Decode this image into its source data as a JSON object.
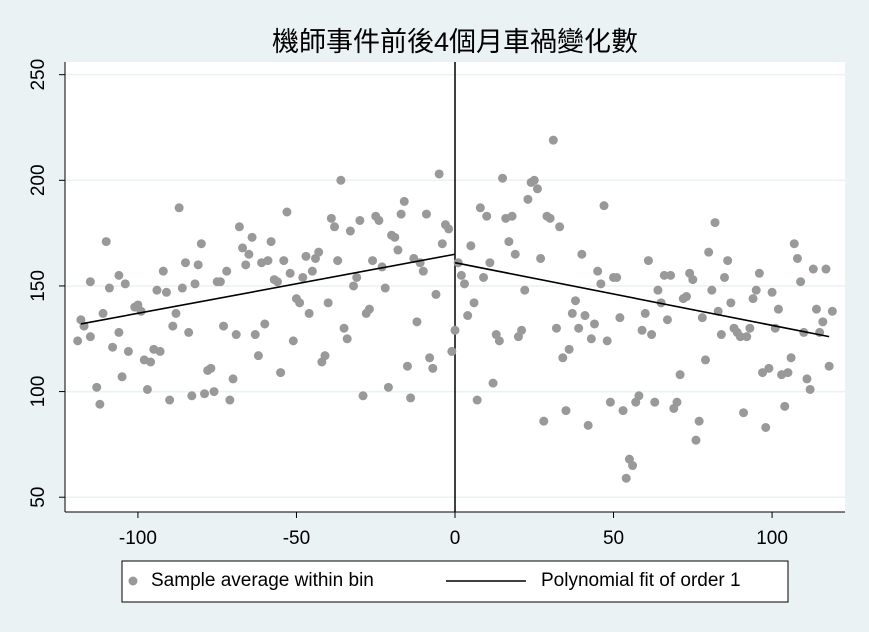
{
  "chart_data": {
    "type": "scatter",
    "title": "機師事件前後4個月車禍變化數",
    "xlim": [
      -123,
      123
    ],
    "xticks": [
      -100,
      -50,
      0,
      50,
      100
    ],
    "ylim": [
      43,
      256
    ],
    "yticks": [
      50,
      100,
      150,
      200,
      250
    ],
    "grid": true,
    "xline": 0,
    "legend": "bottom",
    "series": [
      {
        "name": "Sample average within bin",
        "type": "scatter",
        "color": "#999999",
        "x": [
          -119,
          -118,
          -117,
          -115,
          -115,
          -113,
          -112,
          -111,
          -110,
          -109,
          -108,
          -106,
          -106,
          -105,
          -104,
          -103,
          -101,
          -100,
          -99,
          -98,
          -97,
          -96,
          -95,
          -94,
          -93,
          -92,
          -91,
          -90,
          -89,
          -88,
          -87,
          -86,
          -85,
          -84,
          -83,
          -82,
          -81,
          -80,
          -79,
          -78,
          -77,
          -76,
          -75,
          -74,
          -73,
          -72,
          -71,
          -70,
          -69,
          -68,
          -67,
          -66,
          -65,
          -64,
          -63,
          -62,
          -61,
          -60,
          -59,
          -58,
          -57,
          -56,
          -55,
          -54,
          -53,
          -52,
          -51,
          -50,
          -49,
          -48,
          -47,
          -46,
          -45,
          -44,
          -43,
          -42,
          -41,
          -40,
          -39,
          -38,
          -37,
          -36,
          -35,
          -34,
          -33,
          -32,
          -31,
          -30,
          -29,
          -28,
          -27,
          -26,
          -25,
          -24,
          -23,
          -22,
          -21,
          -20,
          -19,
          -18,
          -17,
          -16,
          -15,
          -14,
          -13,
          -12,
          -11,
          -10,
          -9,
          -8,
          -7,
          -6,
          -5,
          -4,
          -3,
          -2,
          -1,
          0,
          1,
          2,
          3,
          4,
          5,
          6,
          7,
          8,
          9,
          10,
          11,
          12,
          13,
          14,
          15,
          16,
          17,
          18,
          19,
          20,
          21,
          22,
          23,
          24,
          25,
          26,
          27,
          28,
          29,
          30,
          31,
          32,
          33,
          34,
          35,
          36,
          37,
          38,
          39,
          40,
          41,
          42,
          43,
          44,
          45,
          46,
          47,
          48,
          49,
          50,
          51,
          52,
          53,
          54,
          55,
          56,
          57,
          58,
          59,
          60,
          61,
          62,
          63,
          64,
          65,
          66,
          67,
          68,
          69,
          70,
          71,
          72,
          73,
          74,
          75,
          76,
          77,
          78,
          79,
          80,
          81,
          82,
          83,
          84,
          85,
          86,
          87,
          88,
          89,
          90,
          91,
          92,
          93,
          94,
          95,
          96,
          97,
          98,
          99,
          100,
          101,
          102,
          103,
          104,
          105,
          106,
          107,
          108,
          109,
          110,
          111,
          112,
          113,
          114,
          115,
          116,
          117,
          118,
          119
        ],
        "values": [
          124,
          134,
          131,
          126,
          152,
          102,
          94,
          137,
          171,
          149,
          121,
          155,
          128,
          107,
          151,
          119,
          140,
          141,
          138,
          115,
          101,
          114,
          120,
          148,
          119,
          157,
          147,
          96,
          131,
          137,
          187,
          149,
          161,
          128,
          98,
          151,
          160,
          170,
          99,
          110,
          111,
          100,
          152,
          152,
          131,
          157,
          96,
          106,
          127,
          178,
          168,
          160,
          165,
          173,
          127,
          117,
          161,
          132,
          162,
          171,
          153,
          152,
          109,
          162,
          185,
          156,
          124,
          144,
          142,
          154,
          164,
          137,
          157,
          163,
          166,
          114,
          117,
          142,
          182,
          178,
          162,
          200,
          130,
          125,
          176,
          150,
          154,
          181,
          98,
          137,
          139,
          162,
          183,
          181,
          159,
          149,
          102,
          174,
          173,
          167,
          184,
          190,
          112,
          97,
          163,
          133,
          161,
          157,
          184,
          116,
          111,
          146,
          203,
          170,
          179,
          177,
          119,
          129,
          161,
          155,
          151,
          136,
          169,
          142,
          96,
          187,
          154,
          183,
          161,
          104,
          127,
          124,
          201,
          182,
          171,
          183,
          165,
          126,
          129,
          148,
          191,
          199,
          200,
          196,
          163,
          86,
          183,
          182,
          219,
          130,
          178,
          116,
          91,
          120,
          137,
          143,
          130,
          165,
          136,
          84,
          125,
          132,
          157,
          151,
          188,
          124,
          95,
          154,
          154,
          135,
          91,
          59,
          68,
          65,
          95,
          98,
          129,
          137,
          162,
          127,
          95,
          148,
          142,
          155,
          134,
          155,
          92,
          95,
          108,
          144,
          145,
          156,
          153,
          77,
          86,
          135,
          115,
          166,
          148,
          180,
          138,
          127,
          154,
          162,
          142,
          130,
          128,
          126,
          90,
          126,
          130,
          144,
          148,
          156,
          109,
          83,
          111,
          147,
          130,
          139,
          108,
          93,
          109,
          116,
          170,
          163,
          152,
          128,
          106,
          101,
          158,
          139,
          128,
          133,
          158,
          112,
          138
        ]
      },
      {
        "name": "Polynomial fit of order 1",
        "type": "line",
        "color": "#000000",
        "x": [
          -118,
          0,
          0,
          0,
          118
        ],
        "values": [
          132,
          165,
          null,
          161,
          126
        ]
      }
    ]
  }
}
